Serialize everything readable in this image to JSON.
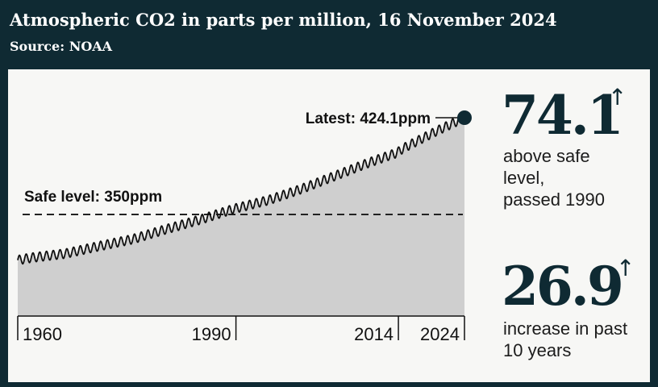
{
  "header": {
    "title": "Atmospheric CO2 in parts per million, 16 November 2024",
    "source": "Source: NOAA"
  },
  "colors": {
    "header_bg": "#0f2a33",
    "area_fill": "#cfcfcf",
    "line": "#111111",
    "accent_dark": "#0f2a33"
  },
  "chart_data": {
    "type": "area",
    "x": [
      1958,
      1960,
      1965,
      1970,
      1975,
      1980,
      1985,
      1990,
      1995,
      2000,
      2005,
      2010,
      2014,
      2015,
      2020,
      2024
    ],
    "y": [
      315.0,
      316.9,
      320.0,
      325.7,
      331.1,
      338.8,
      346.1,
      354.4,
      360.9,
      369.7,
      379.8,
      389.9,
      397.2,
      400.8,
      414.2,
      424.1
    ],
    "seasonal_amplitude_ppm": 3.5,
    "xlim": [
      1958,
      2024
    ],
    "ylim": [
      300,
      430
    ],
    "x_ticks": [
      "1960",
      "1990",
      "2014",
      "2024"
    ],
    "x_tick_values": [
      1960,
      1990,
      2014,
      2024
    ],
    "grid": false,
    "reference_line": {
      "label": "Safe level: 350ppm",
      "value": 350,
      "style": "dashed"
    },
    "latest": {
      "label": "Latest: 424.1ppm",
      "x": 2024,
      "value": 424.1
    }
  },
  "stats": [
    {
      "value": "74.1",
      "arrow": "↑",
      "lines": [
        "above safe",
        "level,",
        "passed 1990"
      ]
    },
    {
      "value": "26.9",
      "arrow": "↑",
      "lines": [
        "increase in past",
        "10 years"
      ]
    }
  ]
}
